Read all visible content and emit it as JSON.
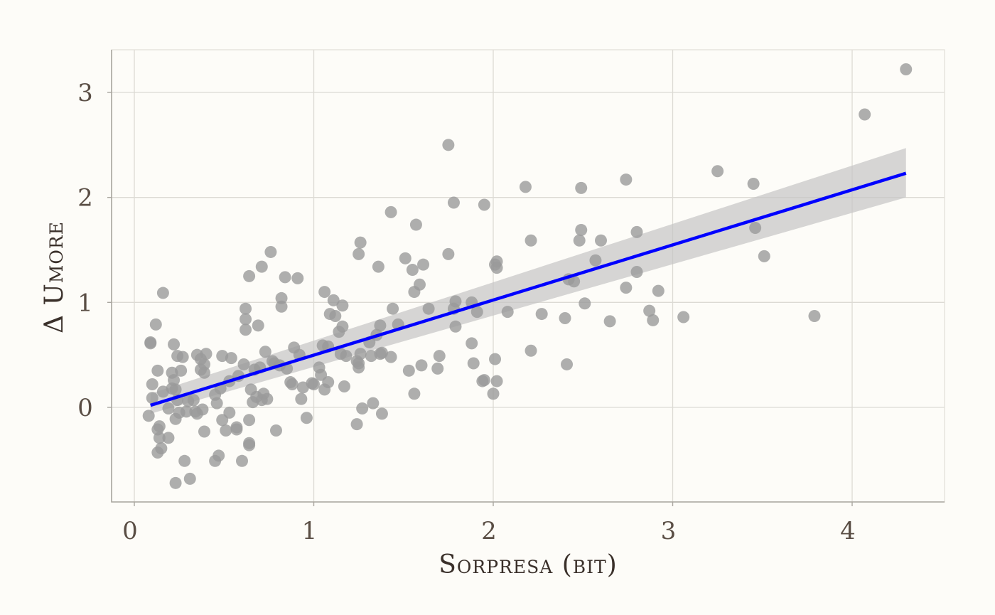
{
  "chart_data": {
    "type": "scatter",
    "title": "",
    "xlabel": "Sorpresa (bit)",
    "ylabel": "Δ Umore",
    "xlim": [
      -0.13,
      4.5
    ],
    "ylim": [
      -0.9,
      3.4
    ],
    "x_ticks": [
      0,
      1,
      2,
      3,
      4
    ],
    "y_ticks": [
      0,
      1,
      2,
      3
    ],
    "x_tick_labels": [
      "0",
      "1",
      "2",
      "3",
      "4"
    ],
    "y_tick_labels": [
      "0",
      "1",
      "2",
      "3"
    ],
    "grid": true,
    "legend": "none",
    "colors": {
      "points": "#9a9a9a",
      "fit": "#0000ff",
      "band": "#c4c4c4",
      "background": "#fdfcf8"
    },
    "fit": {
      "x": [
        0.09,
        4.3
      ],
      "y": [
        0.02,
        2.23
      ],
      "ci_lower": [
        -0.06,
        2.0
      ],
      "ci_upper": [
        0.13,
        2.47
      ]
    },
    "points": [
      [
        0.08,
        -0.08
      ],
      [
        0.09,
        0.62
      ],
      [
        0.09,
        0.61
      ],
      [
        0.1,
        0.09
      ],
      [
        0.1,
        0.22
      ],
      [
        0.12,
        0.79
      ],
      [
        0.13,
        -0.21
      ],
      [
        0.13,
        0.35
      ],
      [
        0.13,
        -0.43
      ],
      [
        0.14,
        -0.29
      ],
      [
        0.14,
        -0.18
      ],
      [
        0.15,
        -0.39
      ],
      [
        0.16,
        0.15
      ],
      [
        0.16,
        1.09
      ],
      [
        0.19,
        -0.01
      ],
      [
        0.19,
        -0.29
      ],
      [
        0.21,
        0.18
      ],
      [
        0.21,
        0.33
      ],
      [
        0.22,
        0.26
      ],
      [
        0.22,
        0.6
      ],
      [
        0.23,
        0.17
      ],
      [
        0.23,
        -0.11
      ],
      [
        0.23,
        -0.72
      ],
      [
        0.24,
        0.49
      ],
      [
        0.24,
        0.07
      ],
      [
        0.25,
        -0.05
      ],
      [
        0.26,
        0.35
      ],
      [
        0.27,
        0.48
      ],
      [
        0.28,
        -0.51
      ],
      [
        0.29,
        -0.04
      ],
      [
        0.3,
        0.06
      ],
      [
        0.31,
        -0.68
      ],
      [
        0.33,
        0.07
      ],
      [
        0.34,
        -0.04
      ],
      [
        0.35,
        0.5
      ],
      [
        0.35,
        -0.06
      ],
      [
        0.37,
        0.36
      ],
      [
        0.37,
        0.46
      ],
      [
        0.38,
        -0.02
      ],
      [
        0.39,
        0.41
      ],
      [
        0.39,
        0.33
      ],
      [
        0.39,
        -0.23
      ],
      [
        0.4,
        0.51
      ],
      [
        0.45,
        -0.51
      ],
      [
        0.45,
        0.12
      ],
      [
        0.46,
        0.04
      ],
      [
        0.47,
        -0.46
      ],
      [
        0.48,
        0.18
      ],
      [
        0.49,
        -0.12
      ],
      [
        0.49,
        0.49
      ],
      [
        0.51,
        -0.22
      ],
      [
        0.53,
        0.25
      ],
      [
        0.53,
        -0.05
      ],
      [
        0.54,
        0.47
      ],
      [
        0.57,
        -0.19
      ],
      [
        0.57,
        -0.21
      ],
      [
        0.58,
        0.3
      ],
      [
        0.6,
        -0.51
      ],
      [
        0.61,
        0.41
      ],
      [
        0.62,
        0.94
      ],
      [
        0.62,
        0.74
      ],
      [
        0.62,
        0.84
      ],
      [
        0.64,
        -0.34
      ],
      [
        0.64,
        -0.36
      ],
      [
        0.64,
        -0.12
      ],
      [
        0.64,
        1.25
      ],
      [
        0.65,
        0.17
      ],
      [
        0.66,
        0.05
      ],
      [
        0.67,
        0.36
      ],
      [
        0.68,
        0.1
      ],
      [
        0.69,
        0.78
      ],
      [
        0.7,
        0.38
      ],
      [
        0.71,
        0.07
      ],
      [
        0.71,
        1.34
      ],
      [
        0.72,
        0.13
      ],
      [
        0.73,
        0.53
      ],
      [
        0.74,
        0.08
      ],
      [
        0.76,
        1.48
      ],
      [
        0.77,
        0.44
      ],
      [
        0.78,
        0.42
      ],
      [
        0.79,
        -0.22
      ],
      [
        0.81,
        0.4
      ],
      [
        0.82,
        1.04
      ],
      [
        0.82,
        0.96
      ],
      [
        0.84,
        1.24
      ],
      [
        0.85,
        0.37
      ],
      [
        0.87,
        0.24
      ],
      [
        0.88,
        0.22
      ],
      [
        0.89,
        0.57
      ],
      [
        0.91,
        1.23
      ],
      [
        0.92,
        0.5
      ],
      [
        0.93,
        0.08
      ],
      [
        0.94,
        0.19
      ],
      [
        0.96,
        -0.1
      ],
      [
        0.99,
        0.23
      ],
      [
        1.0,
        0.22
      ],
      [
        1.03,
        0.38
      ],
      [
        1.04,
        0.31
      ],
      [
        1.05,
        0.59
      ],
      [
        1.06,
        1.1
      ],
      [
        1.06,
        0.17
      ],
      [
        1.08,
        0.24
      ],
      [
        1.08,
        0.58
      ],
      [
        1.09,
        0.89
      ],
      [
        1.11,
        1.02
      ],
      [
        1.12,
        0.87
      ],
      [
        1.14,
        0.72
      ],
      [
        1.15,
        0.51
      ],
      [
        1.16,
        0.97
      ],
      [
        1.16,
        0.77
      ],
      [
        1.17,
        0.2
      ],
      [
        1.18,
        0.49
      ],
      [
        1.24,
        0.44
      ],
      [
        1.24,
        -0.16
      ],
      [
        1.25,
        1.46
      ],
      [
        1.25,
        0.42
      ],
      [
        1.25,
        0.38
      ],
      [
        1.26,
        0.51
      ],
      [
        1.26,
        1.57
      ],
      [
        1.27,
        -0.01
      ],
      [
        1.31,
        0.62
      ],
      [
        1.32,
        0.49
      ],
      [
        1.33,
        0.04
      ],
      [
        1.35,
        0.69
      ],
      [
        1.36,
        1.34
      ],
      [
        1.37,
        0.51
      ],
      [
        1.37,
        0.78
      ],
      [
        1.38,
        -0.06
      ],
      [
        1.38,
        0.52
      ],
      [
        1.43,
        1.86
      ],
      [
        1.43,
        0.48
      ],
      [
        1.44,
        0.94
      ],
      [
        1.47,
        0.79
      ],
      [
        1.51,
        1.42
      ],
      [
        1.53,
        0.35
      ],
      [
        1.55,
        1.31
      ],
      [
        1.56,
        1.1
      ],
      [
        1.56,
        0.13
      ],
      [
        1.57,
        1.74
      ],
      [
        1.59,
        1.17
      ],
      [
        1.6,
        0.4
      ],
      [
        1.61,
        1.36
      ],
      [
        1.64,
        0.94
      ],
      [
        1.69,
        0.37
      ],
      [
        1.7,
        0.49
      ],
      [
        1.75,
        2.5
      ],
      [
        1.75,
        1.46
      ],
      [
        1.78,
        1.95
      ],
      [
        1.78,
        0.94
      ],
      [
        1.79,
        1.01
      ],
      [
        1.79,
        0.77
      ],
      [
        1.88,
        1.0
      ],
      [
        1.88,
        0.61
      ],
      [
        1.89,
        0.42
      ],
      [
        1.91,
        0.91
      ],
      [
        1.94,
        0.25
      ],
      [
        1.95,
        1.93
      ],
      [
        1.95,
        0.26
      ],
      [
        2.0,
        0.13
      ],
      [
        2.01,
        0.46
      ],
      [
        2.01,
        1.36
      ],
      [
        2.02,
        1.39
      ],
      [
        2.02,
        1.33
      ],
      [
        2.02,
        0.25
      ],
      [
        2.08,
        0.91
      ],
      [
        2.18,
        2.1
      ],
      [
        2.21,
        1.59
      ],
      [
        2.21,
        0.54
      ],
      [
        2.27,
        0.89
      ],
      [
        2.4,
        0.85
      ],
      [
        2.41,
        0.41
      ],
      [
        2.42,
        1.22
      ],
      [
        2.45,
        1.2
      ],
      [
        2.48,
        1.59
      ],
      [
        2.49,
        1.69
      ],
      [
        2.49,
        2.09
      ],
      [
        2.51,
        0.99
      ],
      [
        2.57,
        1.4
      ],
      [
        2.6,
        1.59
      ],
      [
        2.65,
        0.82
      ],
      [
        2.74,
        2.17
      ],
      [
        2.74,
        1.14
      ],
      [
        2.8,
        1.29
      ],
      [
        2.8,
        1.67
      ],
      [
        2.87,
        0.92
      ],
      [
        2.89,
        0.83
      ],
      [
        2.92,
        1.11
      ],
      [
        3.06,
        0.86
      ],
      [
        3.25,
        2.25
      ],
      [
        3.45,
        2.13
      ],
      [
        3.46,
        1.71
      ],
      [
        3.51,
        1.44
      ],
      [
        3.79,
        0.87
      ],
      [
        4.07,
        2.79
      ],
      [
        4.3,
        3.22
      ]
    ]
  }
}
